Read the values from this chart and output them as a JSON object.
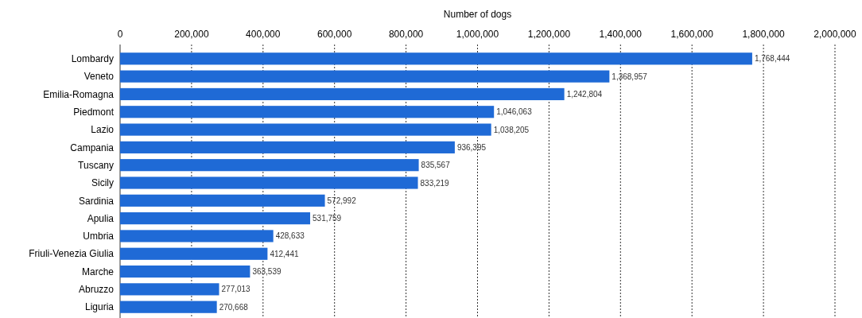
{
  "chart_data": {
    "type": "bar",
    "orientation": "horizontal",
    "xlabel": "Number of dogs",
    "categories": [
      "Lombardy",
      "Veneto",
      "Emilia-Romagna",
      "Piedmont",
      "Lazio",
      "Campania",
      "Tuscany",
      "Sicily",
      "Sardinia",
      "Apulia",
      "Umbria",
      "Friuli-Venezia Giulia",
      "Marche",
      "Abruzzo",
      "Liguria"
    ],
    "values": [
      1768444,
      1368957,
      1242804,
      1046063,
      1038205,
      936395,
      835567,
      833219,
      572992,
      531759,
      428633,
      412441,
      363539,
      277013,
      270668
    ],
    "color": "#1f6ad6",
    "xlim": [
      0,
      2000000
    ],
    "xticks": [
      0,
      {
        "value": 200000,
        "label": "200,000"
      },
      {
        "value": 400000,
        "label": "400,000"
      },
      {
        "value": 600000,
        "label": "600,000"
      },
      {
        "value": 800000,
        "label": "800,000"
      },
      {
        "value": 1000000,
        "label": "1,000,000"
      },
      {
        "value": 1200000,
        "label": "1,200,000"
      },
      {
        "value": 1400000,
        "label": "1,400,000"
      },
      {
        "value": 1600000,
        "label": "1,600,000"
      },
      {
        "value": 1800000,
        "label": "1,800,000"
      },
      {
        "value": 2000000,
        "label": "2,000,000"
      }
    ],
    "value_labels": [
      "1,768,444",
      "1,368,957",
      "1,242,804",
      "1,046,063",
      "1,038,205",
      "936,395",
      "835,567",
      "833,219",
      "572,992",
      "531,759",
      "428,633",
      "412,441",
      "363,539",
      "277,013",
      "270,668"
    ],
    "grid": "x"
  }
}
